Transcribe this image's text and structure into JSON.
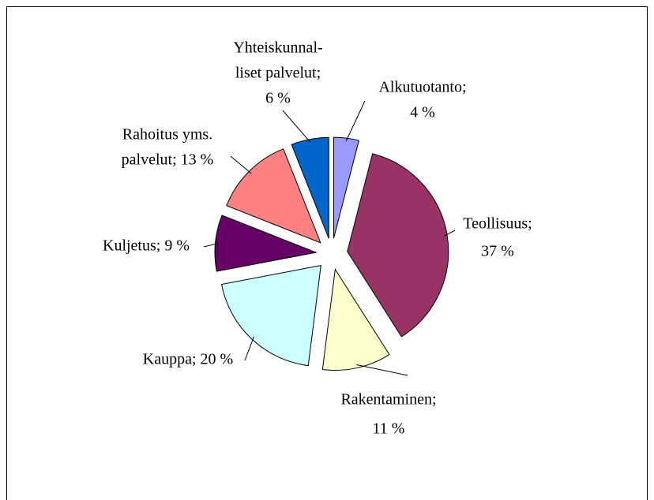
{
  "chart_data": {
    "type": "pie",
    "values": [
      4,
      37,
      11,
      20,
      9,
      13,
      6
    ],
    "value_labels": [
      [
        "Alkutuotanto;",
        "4 %"
      ],
      [
        "Teollisuus;",
        "37 %"
      ],
      [
        "Rakentaminen;",
        "11 %"
      ],
      [
        "Kauppa; 20 %"
      ],
      [
        "Kuljetus; 9 %"
      ],
      [
        "Rahoitus yms.",
        "palvelut; 13 %"
      ],
      [
        "Yhteiskunnal-",
        "liset palvelut;",
        "6 %"
      ]
    ],
    "colors": [
      "#9999ff",
      "#993366",
      "#ffffcc",
      "#ccffff",
      "#660066",
      "#ff8080",
      "#0066cc"
    ],
    "exploded": true
  }
}
